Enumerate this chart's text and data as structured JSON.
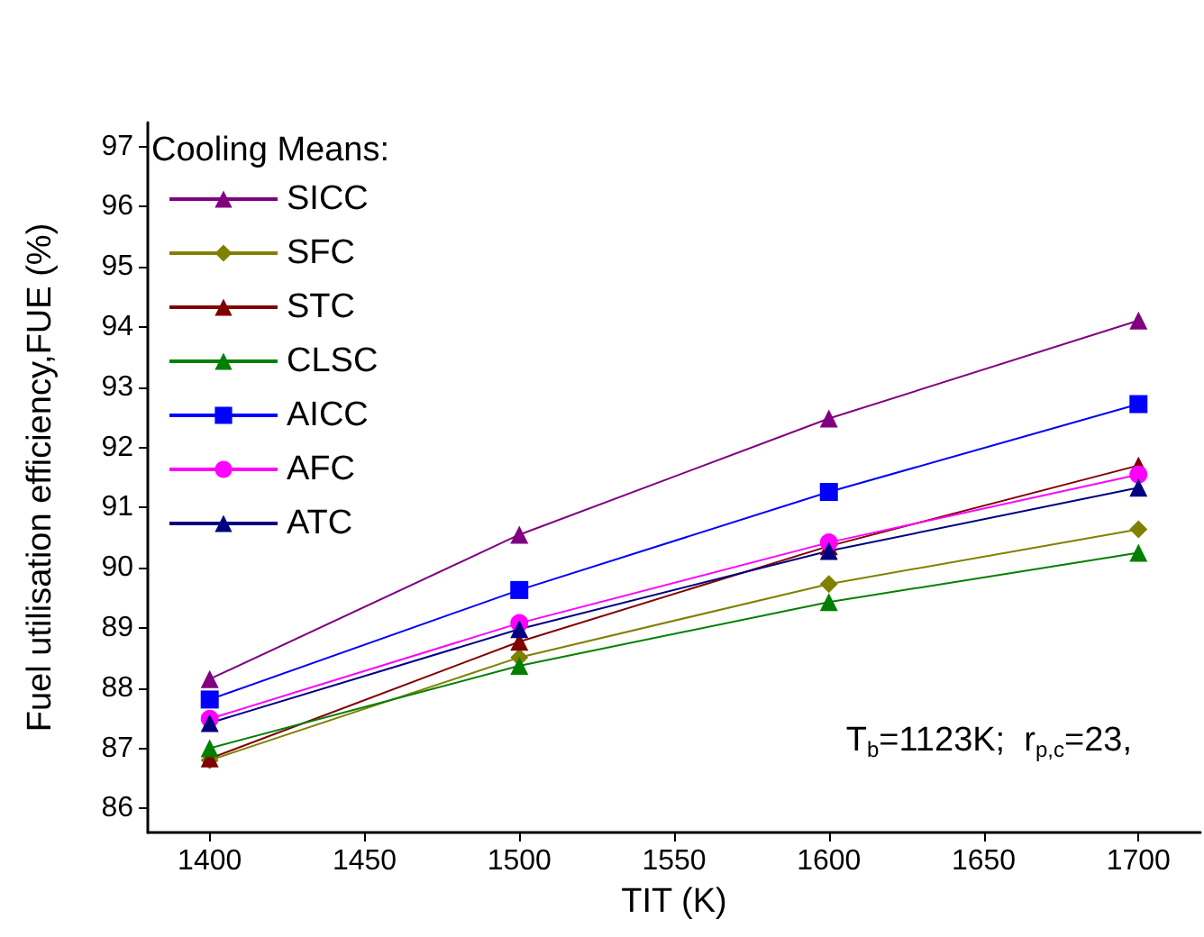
{
  "chart_data": {
    "type": "line",
    "xlabel": "TIT (K)",
    "ylabel": "Fuel utilisation efficiency,FUE (%)",
    "legend_title": "Cooling Means:",
    "legend": "top left",
    "grid": false,
    "line_style": "solid",
    "x": [
      1400,
      1500,
      1600,
      1700
    ],
    "xlim": [
      1380,
      1720
    ],
    "xticks": [
      1400,
      1450,
      1500,
      1550,
      1600,
      1650,
      1700
    ],
    "ylim": [
      85.6,
      97.4
    ],
    "yticks": [
      86,
      87,
      88,
      89,
      90,
      91,
      92,
      93,
      94,
      95,
      96,
      97
    ],
    "annotations": [
      "T$_{b}$=1123K;  r$_{p,c}$=23,"
    ],
    "series": [
      {
        "name": "SICC",
        "color": "#800080",
        "marker": "triangle",
        "values": [
          88.15,
          90.55,
          92.48,
          94.11
        ]
      },
      {
        "name": "SFC",
        "color": "#808000",
        "marker": "diamond",
        "values": [
          86.8,
          88.51,
          89.73,
          90.64
        ]
      },
      {
        "name": "STC",
        "color": "#800000",
        "marker": "triangle",
        "values": [
          86.83,
          88.77,
          90.36,
          91.7
        ]
      },
      {
        "name": "CLSC",
        "color": "#008000",
        "marker": "triangle",
        "values": [
          87.0,
          88.37,
          89.43,
          90.25
        ]
      },
      {
        "name": "AICC",
        "color": "#0000ff",
        "marker": "square",
        "values": [
          87.81,
          89.63,
          91.26,
          92.72
        ]
      },
      {
        "name": "AFC",
        "color": "#ff00ff",
        "marker": "circle",
        "values": [
          87.49,
          89.08,
          90.42,
          91.55
        ]
      },
      {
        "name": "ATC",
        "color": "#000080",
        "marker": "triangle",
        "values": [
          87.42,
          88.98,
          90.28,
          91.33
        ]
      }
    ]
  }
}
